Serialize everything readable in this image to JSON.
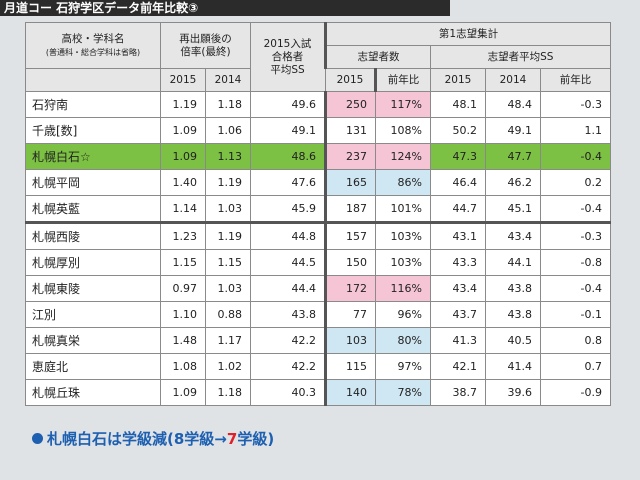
{
  "header_title": "月道コー 石狩学区データ前年比較③",
  "table": {
    "headers": {
      "school": "高校・学科名",
      "school_note": "(普通科・総合学科は省略)",
      "ratio": [
        "再出願後の",
        "倍率(最終)"
      ],
      "pass_ss": [
        "2015入試",
        "合格者",
        "平均SS"
      ],
      "first_choice": "第1志望集計",
      "applicants": "志望者数",
      "applicant_ss": "志望者平均SS",
      "years": [
        "2015",
        "2014",
        "2015",
        "前年比",
        "2015",
        "2014",
        "前年比"
      ]
    },
    "rows": [
      [
        "石狩南",
        "1.19",
        "1.18",
        "49.6",
        "250",
        "117%",
        "48.1",
        "48.4",
        "-0.3"
      ],
      [
        "千歳[数]",
        "1.09",
        "1.06",
        "49.1",
        "131",
        "108%",
        "50.2",
        "49.1",
        "1.1"
      ],
      [
        "札幌白石☆",
        "1.09",
        "1.13",
        "48.6",
        "237",
        "124%",
        "47.3",
        "47.7",
        "-0.4"
      ],
      [
        "札幌平岡",
        "1.40",
        "1.19",
        "47.6",
        "165",
        "86%",
        "46.4",
        "46.2",
        "0.2"
      ],
      [
        "札幌英藍",
        "1.14",
        "1.03",
        "45.9",
        "187",
        "101%",
        "44.7",
        "45.1",
        "-0.4"
      ],
      [
        "札幌西陵",
        "1.23",
        "1.19",
        "44.8",
        "157",
        "103%",
        "43.1",
        "43.4",
        "-0.3"
      ],
      [
        "札幌厚別",
        "1.15",
        "1.15",
        "44.5",
        "150",
        "103%",
        "43.3",
        "44.1",
        "-0.8"
      ],
      [
        "札幌東陵",
        "0.97",
        "1.03",
        "44.4",
        "172",
        "116%",
        "43.4",
        "43.8",
        "-0.4"
      ],
      [
        "江別",
        "1.10",
        "0.88",
        "43.8",
        "77",
        "96%",
        "43.7",
        "43.8",
        "-0.1"
      ],
      [
        "札幌真栄",
        "1.48",
        "1.17",
        "42.2",
        "103",
        "80%",
        "41.3",
        "40.5",
        "0.8"
      ],
      [
        "恵庭北",
        "1.08",
        "1.02",
        "42.2",
        "115",
        "97%",
        "42.1",
        "41.4",
        "0.7"
      ],
      [
        "札幌丘珠",
        "1.09",
        "1.18",
        "40.3",
        "140",
        "78%",
        "38.7",
        "39.6",
        "-0.9"
      ]
    ]
  },
  "footer": {
    "before": "札幌白石は学級減(8学級→",
    "highlight": "7",
    "after": "学級)"
  }
}
